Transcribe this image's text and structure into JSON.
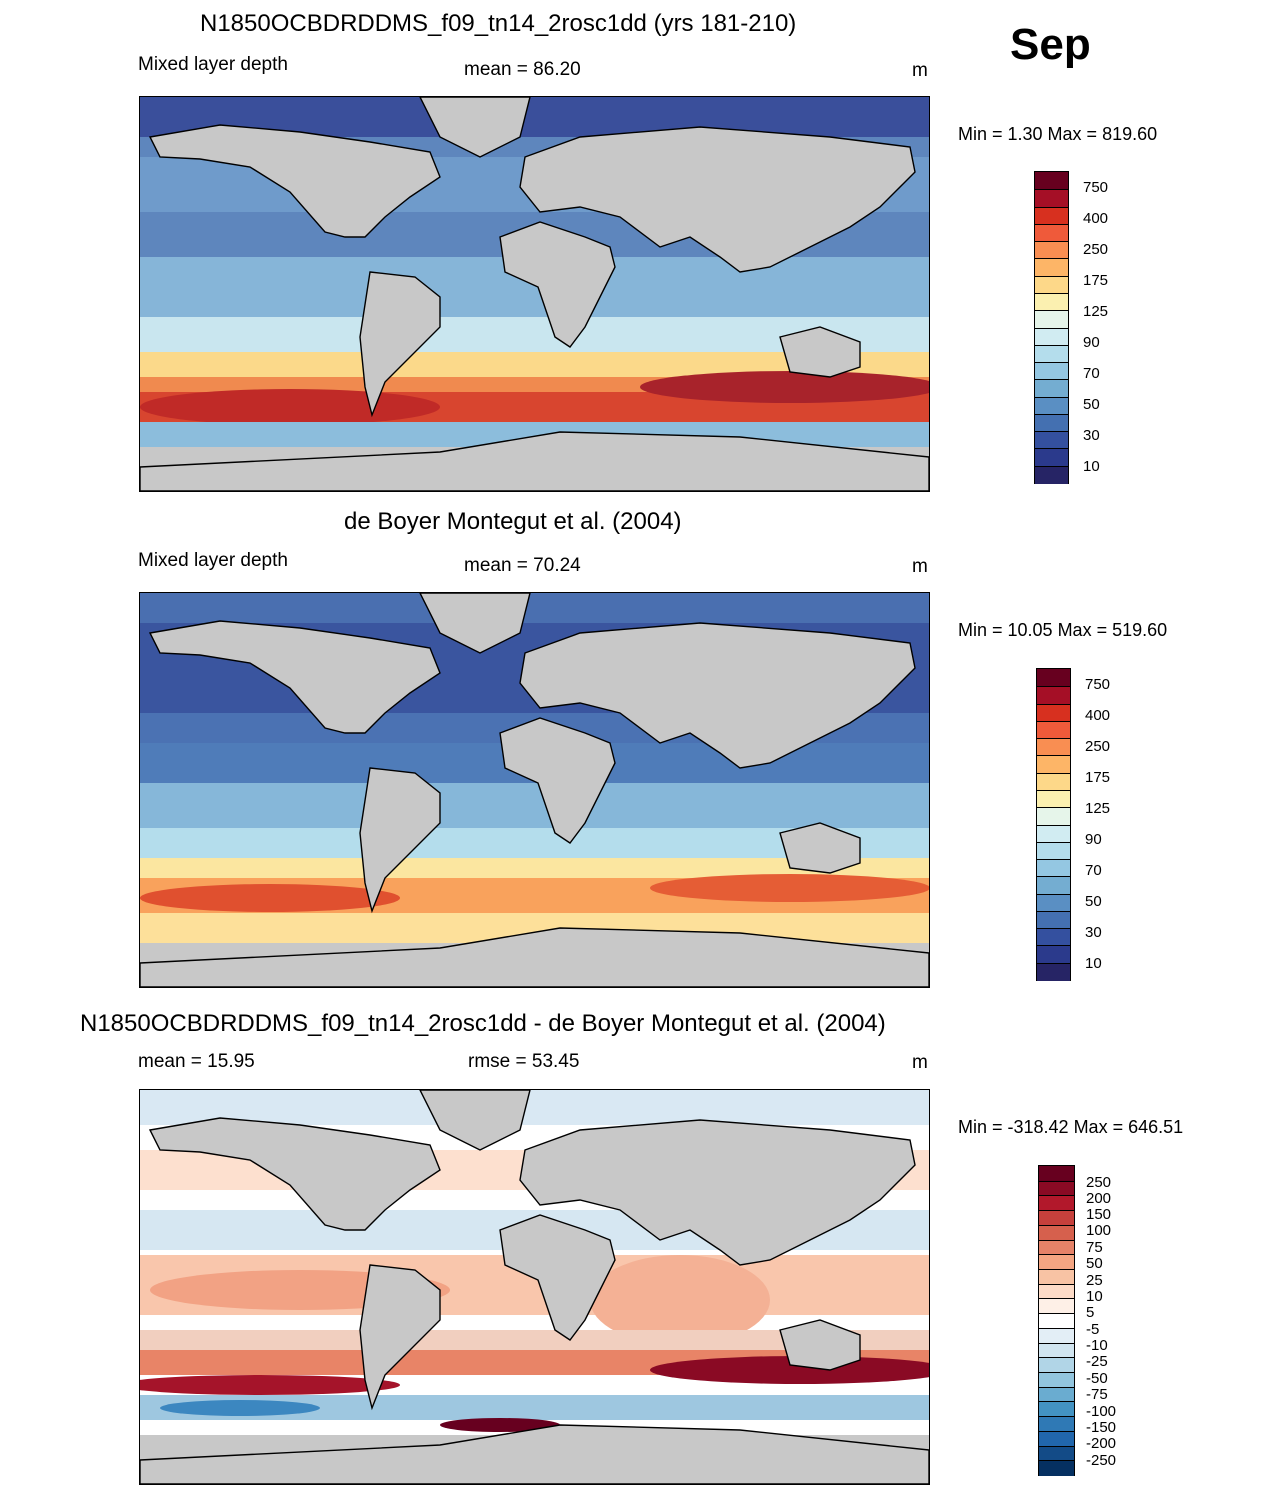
{
  "month": "Sep",
  "panels": [
    {
      "title": "N1850OCBDRDDMS_f09_tn14_2rosc1dd (yrs 181-210)",
      "left_label": "Mixed layer depth",
      "center_label": "mean =  86.20",
      "units": "m",
      "minmax": "Min =   1.30 Max = 819.60",
      "colorbar": "seq"
    },
    {
      "title": "de Boyer Montegut et al. (2004)",
      "left_label": "Mixed layer depth",
      "center_label": "mean =  70.24",
      "units": "m",
      "minmax": "Min =  10.05 Max = 519.60",
      "colorbar": "seq"
    },
    {
      "title": "N1850OCBDRDDMS_f09_tn14_2rosc1dd - de Boyer Montegut et al. (2004)",
      "left_label": "mean =  15.95",
      "center_label": "rmse =  53.45",
      "units": "m",
      "minmax": "Min = -318.42 Max = 646.51",
      "colorbar": "div"
    }
  ],
  "colorbars": {
    "seq": {
      "labels": [
        "750",
        "400",
        "250",
        "175",
        "125",
        "90",
        "70",
        "50",
        "30",
        "10"
      ],
      "colors": [
        "#67001f",
        "#a50f26",
        "#d7301f",
        "#ef5a3a",
        "#f98e52",
        "#fdb567",
        "#fdd889",
        "#fbf0b0",
        "#e6f5ea",
        "#d1ecf2",
        "#b4ddec",
        "#94c7e2",
        "#74add1",
        "#5a8fc3",
        "#4470b1",
        "#34509f",
        "#2b3a8c",
        "#262465"
      ]
    },
    "div": {
      "labels": [
        "250",
        "200",
        "150",
        "100",
        "75",
        "50",
        "25",
        "10",
        "5",
        "-5",
        "-10",
        "-25",
        "-50",
        "-75",
        "-100",
        "-150",
        "-200",
        "-250"
      ],
      "colors": [
        "#67001f",
        "#8a0a24",
        "#b2182b",
        "#c6403c",
        "#d6604d",
        "#e58268",
        "#f4a582",
        "#f8c3a4",
        "#fddbc7",
        "#fef0e7",
        "#ffffff",
        "#e3eef6",
        "#d1e5f0",
        "#b1d5e7",
        "#92c5de",
        "#6aacd0",
        "#4393c3",
        "#2f79b5",
        "#2166ac",
        "#134b87",
        "#053061"
      ]
    }
  },
  "chart_data": [
    {
      "type": "heatmap",
      "title": "N1850OCBDRDDMS_f09_tn14_2rosc1dd (yrs 181-210)",
      "variable": "Mixed layer depth",
      "units": "m",
      "mean": 86.2,
      "min": 1.3,
      "max": 819.6,
      "levels": [
        10,
        20,
        30,
        40,
        50,
        60,
        70,
        80,
        90,
        100,
        125,
        150,
        175,
        200,
        250,
        300,
        400,
        500,
        750
      ]
    },
    {
      "type": "heatmap",
      "title": "de Boyer Montegut et al. (2004)",
      "variable": "Mixed layer depth",
      "units": "m",
      "mean": 70.24,
      "min": 10.05,
      "max": 519.6,
      "levels": [
        10,
        20,
        30,
        40,
        50,
        60,
        70,
        80,
        90,
        100,
        125,
        150,
        175,
        200,
        250,
        300,
        400,
        500,
        750
      ]
    },
    {
      "type": "heatmap",
      "title": "N1850OCBDRDDMS_f09_tn14_2rosc1dd - de Boyer Montegut et al. (2004)",
      "units": "m",
      "mean": 15.95,
      "rmse": 53.45,
      "min": -318.42,
      "max": 646.51,
      "levels": [
        -250,
        -200,
        -150,
        -100,
        -75,
        -50,
        -25,
        -10,
        -5,
        5,
        10,
        25,
        50,
        75,
        100,
        150,
        200,
        250
      ]
    }
  ]
}
